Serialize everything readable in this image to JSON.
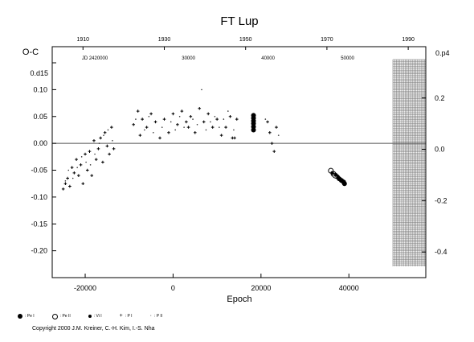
{
  "chart_data": {
    "type": "scatter",
    "title": "FT Lup",
    "ylabel": "O-C",
    "xlabel": "Epoch",
    "jd_label": "JD 2420000",
    "xlim": [
      -27500,
      57500
    ],
    "ylim": [
      -0.25,
      0.18
    ],
    "right_ylim": [
      -0.5,
      0.4
    ],
    "x_ticks": [
      -20000,
      0,
      20000,
      40000
    ],
    "y_ticks": [
      "0.15",
      "0.10",
      "0.05",
      "0.00",
      "-0.05",
      "-0.10",
      "-0.15",
      "-0.20"
    ],
    "y_tick_values": [
      0.15,
      0.1,
      0.05,
      0.0,
      -0.05,
      -0.1,
      -0.15,
      -0.2
    ],
    "y_top_label": "0.d15",
    "right_ticks": [
      "0.2",
      "0.0",
      "-0.2",
      "-0.4"
    ],
    "right_tick_values": [
      0.2,
      0.0,
      -0.2,
      -0.4
    ],
    "right_top_label": "0.p4",
    "top_year_ticks": [
      "1910",
      "1930",
      "1950",
      "1970",
      "1990"
    ],
    "top_year_epochs": [
      -20500,
      -2000,
      16500,
      35000,
      53500
    ],
    "top_jd_ticks": [
      "30000",
      "40000",
      "50000"
    ],
    "top_jd_epochs": [
      3500,
      21600,
      39700
    ],
    "hatch_from_epoch": 50000,
    "series": [
      {
        "name": "Pe I",
        "marker": "filled",
        "points": [
          [
            18300,
            0.052
          ],
          [
            18300,
            0.047
          ],
          [
            18300,
            0.042
          ],
          [
            18300,
            0.037
          ],
          [
            18300,
            0.031
          ],
          [
            18300,
            0.025
          ],
          [
            37300,
            -0.062
          ],
          [
            37800,
            -0.066
          ],
          [
            38300,
            -0.069
          ],
          [
            38800,
            -0.072
          ],
          [
            39000,
            -0.075
          ]
        ]
      },
      {
        "name": "Pe II",
        "marker": "open",
        "points": [
          [
            35900,
            -0.051
          ],
          [
            36500,
            -0.057
          ],
          [
            36900,
            -0.06
          ]
        ]
      },
      {
        "name": "Vi I",
        "marker": "small",
        "points": [
          [
            36200,
            -0.055
          ],
          [
            37000,
            -0.059
          ],
          [
            37600,
            -0.063
          ],
          [
            38100,
            -0.067
          ],
          [
            38600,
            -0.07
          ]
        ]
      },
      {
        "name": "P I",
        "marker": "plus",
        "points": [
          [
            -25000,
            -0.085
          ],
          [
            -24500,
            -0.075
          ],
          [
            -24000,
            -0.065
          ],
          [
            -23500,
            -0.08
          ],
          [
            -23000,
            -0.045
          ],
          [
            -22500,
            -0.055
          ],
          [
            -22000,
            -0.03
          ],
          [
            -21500,
            -0.06
          ],
          [
            -21000,
            -0.04
          ],
          [
            -20500,
            -0.075
          ],
          [
            -20000,
            -0.02
          ],
          [
            -19500,
            -0.05
          ],
          [
            -19000,
            -0.015
          ],
          [
            -18500,
            -0.06
          ],
          [
            -18000,
            0.005
          ],
          [
            -17500,
            -0.03
          ],
          [
            -17000,
            -0.01
          ],
          [
            -16500,
            0.01
          ],
          [
            -16000,
            -0.035
          ],
          [
            -15500,
            0.02
          ],
          [
            -15000,
            -0.005
          ],
          [
            -14500,
            -0.02
          ],
          [
            -14000,
            0.03
          ],
          [
            -13500,
            -0.01
          ],
          [
            -9000,
            0.035
          ],
          [
            -8000,
            0.06
          ],
          [
            -7500,
            0.015
          ],
          [
            -7000,
            0.045
          ],
          [
            -6000,
            0.03
          ],
          [
            -5000,
            0.055
          ],
          [
            -4000,
            0.04
          ],
          [
            -3000,
            0.01
          ],
          [
            -2000,
            0.045
          ],
          [
            -1000,
            0.02
          ],
          [
            0,
            0.055
          ],
          [
            1000,
            0.035
          ],
          [
            2000,
            0.06
          ],
          [
            3000,
            0.04
          ],
          [
            3500,
            0.03
          ],
          [
            4000,
            0.05
          ],
          [
            5000,
            0.02
          ],
          [
            6000,
            0.065
          ],
          [
            7000,
            0.04
          ],
          [
            8000,
            0.055
          ],
          [
            9000,
            0.03
          ],
          [
            10000,
            0.045
          ],
          [
            11000,
            0.015
          ],
          [
            12000,
            0.03
          ],
          [
            13000,
            0.05
          ],
          [
            13500,
            0.01
          ],
          [
            14000,
            0.01
          ],
          [
            14500,
            0.045
          ],
          [
            21500,
            0.04
          ],
          [
            22000,
            0.02
          ],
          [
            22500,
            0.0
          ],
          [
            23000,
            -0.015
          ],
          [
            23500,
            0.03
          ]
        ]
      },
      {
        "name": "P II",
        "marker": "dot",
        "points": [
          [
            -24500,
            -0.07
          ],
          [
            -23800,
            -0.05
          ],
          [
            -22800,
            -0.065
          ],
          [
            -21800,
            -0.045
          ],
          [
            -20800,
            -0.025
          ],
          [
            -19800,
            -0.035
          ],
          [
            -18800,
            -0.04
          ],
          [
            -17800,
            -0.02
          ],
          [
            -16800,
            0.0
          ],
          [
            -15800,
            0.015
          ],
          [
            -14800,
            0.025
          ],
          [
            -13800,
            0.005
          ],
          [
            -8500,
            0.045
          ],
          [
            -6500,
            0.025
          ],
          [
            -5500,
            0.05
          ],
          [
            -4500,
            0.02
          ],
          [
            -2500,
            0.03
          ],
          [
            -500,
            0.04
          ],
          [
            500,
            0.025
          ],
          [
            1500,
            0.05
          ],
          [
            2500,
            0.03
          ],
          [
            4500,
            0.045
          ],
          [
            5500,
            0.035
          ],
          [
            6500,
            0.1
          ],
          [
            7500,
            0.025
          ],
          [
            8500,
            0.04
          ],
          [
            9500,
            0.05
          ],
          [
            10500,
            0.03
          ],
          [
            11500,
            0.045
          ],
          [
            12500,
            0.06
          ],
          [
            13800,
            0.025
          ],
          [
            21000,
            0.045
          ],
          [
            24000,
            0.015
          ]
        ]
      }
    ],
    "legend": [
      {
        "symbol": "filled",
        "label": ": Pe I"
      },
      {
        "symbol": "open",
        "label": ": Pe II"
      },
      {
        "symbol": "small",
        "label": ": Vi I"
      },
      {
        "symbol": "plus",
        "label": ": P I"
      },
      {
        "symbol": "dot",
        "label": ": P II"
      }
    ]
  },
  "copyright": "Copyright 2000 J.M. Kreiner, C.-H. Kim, I.-S. Nha"
}
